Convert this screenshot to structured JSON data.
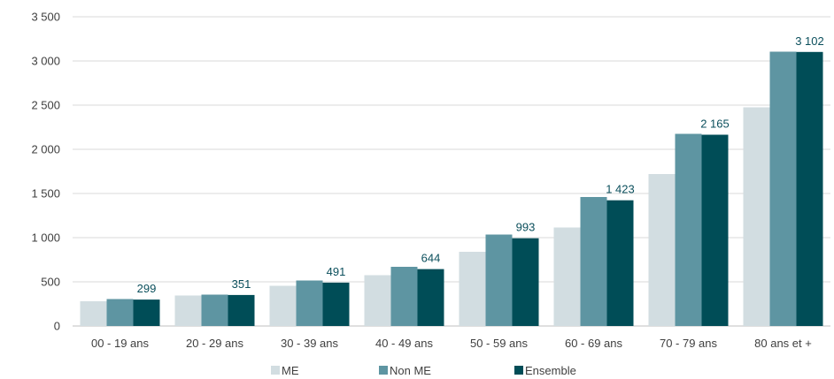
{
  "chart_data": {
    "type": "bar",
    "categories": [
      "00 - 19 ans",
      "20 - 29 ans",
      "30 - 39 ans",
      "40 - 49 ans",
      "50 - 59 ans",
      "60 - 69 ans",
      "70 - 79 ans",
      "80 ans et +"
    ],
    "series": [
      {
        "name": "ME",
        "color": "#d2dde1",
        "values": [
          280,
          345,
          455,
          575,
          840,
          1115,
          1720,
          2475
        ]
      },
      {
        "name": "Non ME",
        "color": "#5e95a2",
        "values": [
          305,
          355,
          515,
          670,
          1035,
          1460,
          2175,
          3105
        ]
      },
      {
        "name": "Ensemble",
        "color": "#004d57",
        "values": [
          299,
          351,
          491,
          644,
          993,
          1423,
          2165,
          3102
        ]
      }
    ],
    "data_labels": {
      "series": "Ensemble",
      "texts": [
        "299",
        "351",
        "491",
        "644",
        "993",
        "1 423",
        "2 165",
        "3 102"
      ]
    },
    "yticks": [
      {
        "value": 0,
        "label": "0"
      },
      {
        "value": 500,
        "label": "500"
      },
      {
        "value": 1000,
        "label": "1 000"
      },
      {
        "value": 1500,
        "label": "1 500"
      },
      {
        "value": 2000,
        "label": "2 000"
      },
      {
        "value": 2500,
        "label": "2 500"
      },
      {
        "value": 3000,
        "label": "3 000"
      },
      {
        "value": 3500,
        "label": "3 500"
      }
    ],
    "ylim": [
      0,
      3500
    ],
    "grid": true,
    "legend_position": "bottom",
    "title": "",
    "xlabel": "",
    "ylabel": ""
  }
}
